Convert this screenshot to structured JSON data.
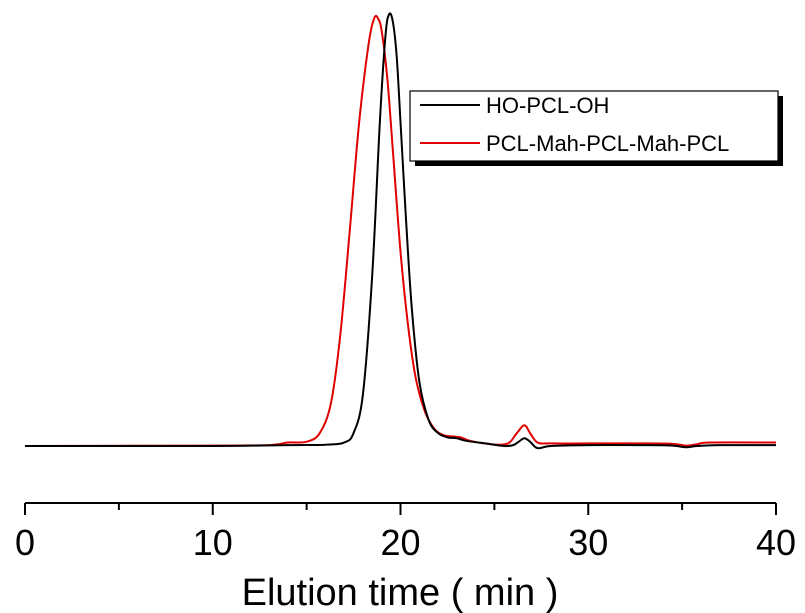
{
  "chart_data": {
    "type": "line",
    "title": "",
    "xlabel": "Elution time ( min )",
    "ylabel": "",
    "xlim": [
      0,
      40
    ],
    "ylim": [
      0,
      1.1
    ],
    "x_ticks": [
      "0",
      "10",
      "20",
      "30",
      "40"
    ],
    "x_minor_ticks": [
      5,
      15,
      25,
      35
    ],
    "y_axis_visible": false,
    "grid": false,
    "legend_position": "top-right",
    "legend_shadow": true,
    "series": [
      {
        "name": "HO-PCL-OH",
        "color": "#000000",
        "points": [
          [
            0,
            0.0
          ],
          [
            10,
            0.0
          ],
          [
            14,
            0.002
          ],
          [
            16,
            0.003
          ],
          [
            17.0,
            0.008
          ],
          [
            17.5,
            0.03
          ],
          [
            18.0,
            0.12
          ],
          [
            18.5,
            0.4
          ],
          [
            18.9,
            0.75
          ],
          [
            19.2,
            0.95
          ],
          [
            19.4,
            1.0
          ],
          [
            19.6,
            0.98
          ],
          [
            19.8,
            0.9
          ],
          [
            20.0,
            0.75
          ],
          [
            20.3,
            0.52
          ],
          [
            20.6,
            0.32
          ],
          [
            21.0,
            0.15
          ],
          [
            21.5,
            0.06
          ],
          [
            22.0,
            0.03
          ],
          [
            22.5,
            0.02
          ],
          [
            23.0,
            0.018
          ],
          [
            23.5,
            0.012
          ],
          [
            24.5,
            0.006
          ],
          [
            25.5,
            0.0
          ],
          [
            26.0,
            0.002
          ],
          [
            26.3,
            0.01
          ],
          [
            26.6,
            0.018
          ],
          [
            26.9,
            0.01
          ],
          [
            27.3,
            -0.005
          ],
          [
            28.0,
            0.0
          ],
          [
            30.0,
            0.002
          ],
          [
            33.0,
            0.002
          ],
          [
            34.5,
            0.001
          ],
          [
            35.2,
            -0.003
          ],
          [
            35.8,
            0.0
          ],
          [
            37.0,
            0.002
          ],
          [
            40.0,
            0.002
          ]
        ]
      },
      {
        "name": "PCL-Mah-PCL-Mah-PCL",
        "color": "#e00000",
        "points": [
          [
            0,
            0.0
          ],
          [
            10,
            0.001
          ],
          [
            13.0,
            0.002
          ],
          [
            14.0,
            0.008
          ],
          [
            15.0,
            0.01
          ],
          [
            15.7,
            0.03
          ],
          [
            16.3,
            0.1
          ],
          [
            16.8,
            0.26
          ],
          [
            17.3,
            0.5
          ],
          [
            17.8,
            0.75
          ],
          [
            18.3,
            0.93
          ],
          [
            18.6,
            0.99
          ],
          [
            18.8,
            0.99
          ],
          [
            19.0,
            0.96
          ],
          [
            19.3,
            0.85
          ],
          [
            19.6,
            0.68
          ],
          [
            20.0,
            0.45
          ],
          [
            20.4,
            0.28
          ],
          [
            20.8,
            0.16
          ],
          [
            21.3,
            0.08
          ],
          [
            21.8,
            0.04
          ],
          [
            22.3,
            0.025
          ],
          [
            22.8,
            0.022
          ],
          [
            23.2,
            0.02
          ],
          [
            23.7,
            0.012
          ],
          [
            24.5,
            0.006
          ],
          [
            25.3,
            0.003
          ],
          [
            25.8,
            0.008
          ],
          [
            26.2,
            0.03
          ],
          [
            26.6,
            0.048
          ],
          [
            26.9,
            0.03
          ],
          [
            27.3,
            0.008
          ],
          [
            28.0,
            0.006
          ],
          [
            30.0,
            0.006
          ],
          [
            33.0,
            0.006
          ],
          [
            34.5,
            0.005
          ],
          [
            35.2,
            0.001
          ],
          [
            35.8,
            0.004
          ],
          [
            36.5,
            0.008
          ],
          [
            40.0,
            0.008
          ]
        ]
      }
    ]
  }
}
